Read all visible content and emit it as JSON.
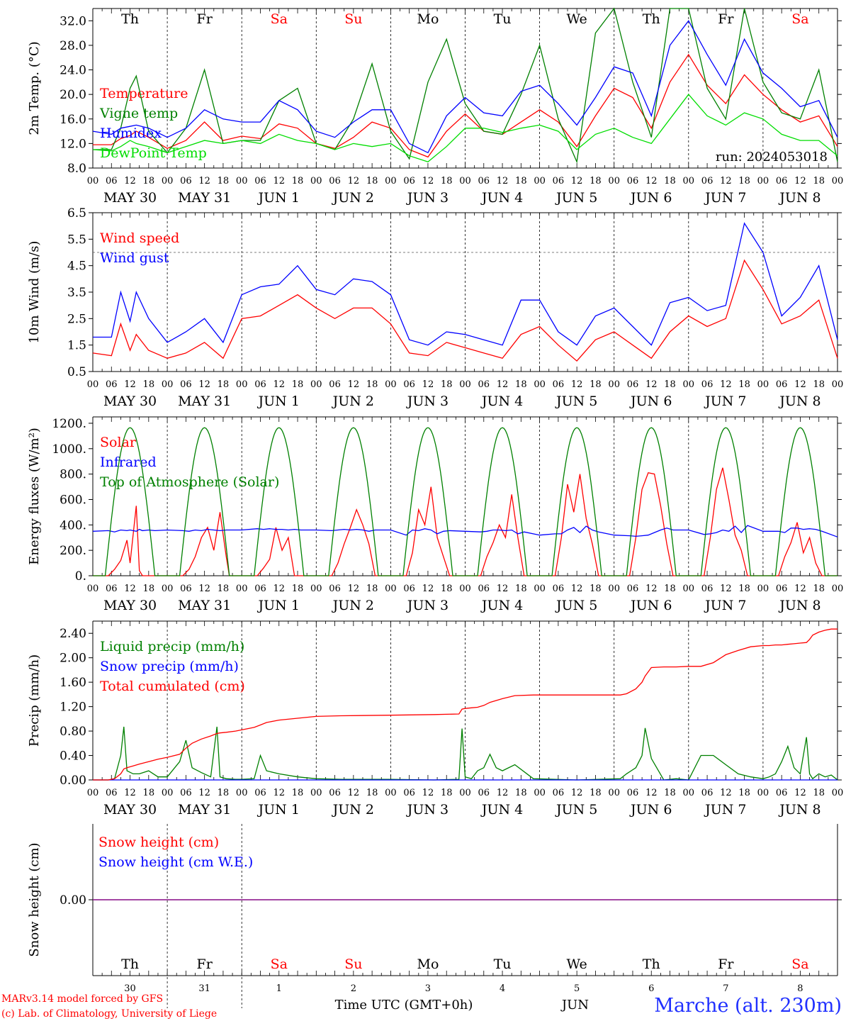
{
  "page": {
    "run_label": "run: 2024053018",
    "xlabel": "Time UTC (GMT+0h)",
    "month_label": "JUN",
    "location": "Marche (alt. 230m)",
    "credits": [
      "MARv3.14 model forced by GFS",
      "(c) Lab. of Climatology, University of Liege"
    ]
  },
  "time_axis": {
    "hour_ticks": [
      "00",
      "06",
      "12",
      "18"
    ],
    "days": [
      {
        "abbr": "Th",
        "date": "MAY 30",
        "num": "30",
        "weekend": false
      },
      {
        "abbr": "Fr",
        "date": "MAY 31",
        "num": "31",
        "weekend": false
      },
      {
        "abbr": "Sa",
        "date": "JUN  1",
        "num": "1",
        "weekend": true
      },
      {
        "abbr": "Su",
        "date": "JUN  2",
        "num": "2",
        "weekend": true
      },
      {
        "abbr": "Mo",
        "date": "JUN  3",
        "num": "3",
        "weekend": false
      },
      {
        "abbr": "Tu",
        "date": "JUN  4",
        "num": "4",
        "weekend": false
      },
      {
        "abbr": "We",
        "date": "JUN  5",
        "num": "5",
        "weekend": false
      },
      {
        "abbr": "Th",
        "date": "JUN  6",
        "num": "6",
        "weekend": false
      },
      {
        "abbr": "Fr",
        "date": "JUN  7",
        "num": "7",
        "weekend": false
      },
      {
        "abbr": "Sa",
        "date": "JUN  8",
        "num": "8",
        "weekend": true
      }
    ],
    "start_hour": 0,
    "end_hour": 240
  },
  "colors": {
    "red": "#ff0000",
    "green": "#008000",
    "blue": "#0000ff",
    "lime": "#00dd00",
    "purple": "#800080",
    "weekend": "#ff0000",
    "grid": "#888888"
  },
  "chart_data": [
    {
      "type": "line",
      "ylabel": "2m Temp. (°C)",
      "ylim": [
        8,
        34
      ],
      "yticks": [
        "8.0",
        "12.0",
        "16.0",
        "20.0",
        "24.0",
        "28.0",
        "32.0"
      ],
      "ytick_values": [
        8,
        12,
        16,
        20,
        24,
        28,
        32
      ],
      "show_weekdays_top": true,
      "x_hours": [
        0,
        6,
        9,
        12,
        14,
        18,
        24,
        30,
        36,
        42,
        48,
        54,
        60,
        66,
        72,
        78,
        84,
        90,
        96,
        102,
        108,
        114,
        120,
        126,
        132,
        138,
        144,
        150,
        156,
        162,
        168,
        174,
        180,
        186,
        192,
        198,
        204,
        210,
        216,
        222,
        228,
        234,
        240
      ],
      "series": [
        {
          "name": "Temperature",
          "color": "red",
          "values": [
            11.8,
            11.8,
            12.8,
            13.3,
            14.0,
            13.0,
            11.2,
            12.5,
            15.5,
            12.5,
            13.2,
            12.8,
            15.2,
            14.5,
            12.0,
            11.2,
            13.0,
            15.5,
            14.5,
            11.0,
            9.8,
            14.0,
            16.8,
            14.0,
            13.5,
            15.5,
            17.5,
            15.5,
            11.5,
            16.5,
            21.0,
            19.5,
            14.5,
            22.0,
            26.5,
            21.5,
            18.5,
            23.2,
            20.0,
            17.5,
            15.5,
            16.5,
            11.5
          ]
        },
        {
          "name": "Vigne temp",
          "color": "green",
          "values": [
            11.0,
            11.0,
            14.5,
            21.0,
            23.0,
            14.0,
            10.5,
            14.5,
            24.0,
            12.0,
            12.5,
            12.5,
            19.0,
            21.0,
            12.0,
            11.0,
            16.0,
            25.0,
            14.0,
            9.5,
            22.0,
            29.0,
            18.5,
            14.0,
            13.5,
            20.0,
            28.0,
            16.0,
            9.0,
            30.0,
            34.0,
            22.0,
            13.0,
            34.0,
            36.0,
            21.0,
            16.0,
            38.0,
            22.0,
            17.0,
            16.0,
            24.0,
            9.0
          ]
        },
        {
          "name": "Humidex",
          "color": "blue",
          "values": [
            14.0,
            13.5,
            14.5,
            14.8,
            15.0,
            14.5,
            13.0,
            14.5,
            17.5,
            16.0,
            15.5,
            15.5,
            19.0,
            17.5,
            14.0,
            13.0,
            15.5,
            17.5,
            17.5,
            12.0,
            10.5,
            16.5,
            19.5,
            17.0,
            16.5,
            20.5,
            21.5,
            18.5,
            15.0,
            19.5,
            24.5,
            23.5,
            16.5,
            28.0,
            32.0,
            26.5,
            21.5,
            29.0,
            23.5,
            21.0,
            18.0,
            19.0,
            13.0
          ]
        },
        {
          "name": "DewPoint Temp",
          "color": "lime",
          "values": [
            11.0,
            10.8,
            11.5,
            12.5,
            12.0,
            11.5,
            10.5,
            11.5,
            12.5,
            12.0,
            12.5,
            12.0,
            13.5,
            12.5,
            12.0,
            11.0,
            12.0,
            11.5,
            12.0,
            10.0,
            9.0,
            11.5,
            14.5,
            14.5,
            13.8,
            14.5,
            15.0,
            14.0,
            11.0,
            13.5,
            14.5,
            13.0,
            12.0,
            16.0,
            20.0,
            16.5,
            15.0,
            17.0,
            16.0,
            13.5,
            12.5,
            12.5,
            10.0
          ]
        }
      ]
    },
    {
      "type": "line",
      "ylabel": "10m Wind (m/s)",
      "ylim": [
        0.5,
        6.5
      ],
      "yticks": [
        "0.5",
        "1.5",
        "2.5",
        "3.5",
        "4.5",
        "5.5",
        "6.5"
      ],
      "ytick_values": [
        0.5,
        1.5,
        2.5,
        3.5,
        4.5,
        5.5,
        6.5
      ],
      "ref_line": 5.0,
      "x_hours": [
        0,
        6,
        9,
        12,
        14,
        18,
        24,
        30,
        36,
        42,
        48,
        54,
        60,
        66,
        72,
        78,
        84,
        90,
        96,
        102,
        108,
        114,
        120,
        126,
        132,
        138,
        144,
        150,
        156,
        162,
        168,
        174,
        180,
        186,
        192,
        198,
        204,
        210,
        216,
        222,
        228,
        234,
        240
      ],
      "series": [
        {
          "name": "Wind speed",
          "color": "red",
          "values": [
            1.2,
            1.1,
            2.3,
            1.3,
            1.9,
            1.3,
            1.0,
            1.2,
            1.6,
            1.0,
            2.5,
            2.6,
            3.0,
            3.4,
            2.9,
            2.5,
            2.9,
            2.9,
            2.3,
            1.2,
            1.1,
            1.6,
            1.4,
            1.2,
            1.0,
            1.9,
            2.2,
            1.5,
            0.9,
            1.7,
            2.0,
            1.5,
            1.0,
            2.0,
            2.6,
            2.2,
            2.5,
            4.7,
            3.6,
            2.3,
            2.6,
            3.2,
            1.0
          ]
        },
        {
          "name": "Wind gust",
          "color": "blue",
          "values": [
            1.8,
            1.8,
            3.5,
            2.4,
            3.5,
            2.5,
            1.6,
            2.0,
            2.5,
            1.6,
            3.4,
            3.7,
            3.8,
            4.5,
            3.6,
            3.4,
            4.0,
            3.9,
            3.4,
            1.7,
            1.5,
            2.0,
            1.9,
            1.7,
            1.5,
            3.2,
            3.2,
            2.0,
            1.5,
            2.6,
            2.9,
            2.2,
            1.5,
            3.1,
            3.3,
            2.8,
            3.0,
            6.1,
            5.0,
            2.6,
            3.3,
            4.5,
            1.7
          ]
        }
      ]
    },
    {
      "type": "line",
      "ylabel": "Energy fluxes (W/m²)",
      "ylim": [
        0,
        1250
      ],
      "yticks": [
        "0.",
        "200.",
        "400.",
        "600.",
        "800.",
        "1000.",
        "1200."
      ],
      "ytick_values": [
        0,
        200,
        400,
        600,
        800,
        1000,
        1200
      ],
      "x_hours": [
        0,
        5,
        7,
        9,
        11,
        12,
        14,
        15,
        16,
        18,
        20,
        24,
        29,
        31,
        33,
        35,
        37,
        39,
        41,
        43,
        44,
        48,
        53,
        55,
        57,
        59,
        61,
        63,
        65,
        67,
        72,
        77,
        79,
        81,
        83,
        85,
        87,
        89,
        91,
        96,
        101,
        103,
        105,
        107,
        109,
        111,
        113,
        115,
        120,
        125,
        127,
        129,
        131,
        133,
        135,
        137,
        139,
        144,
        149,
        151,
        153,
        155,
        157,
        159,
        161,
        163,
        168,
        173,
        175,
        177,
        179,
        181,
        183,
        185,
        187,
        192,
        197,
        199,
        201,
        203,
        205,
        207,
        209,
        211,
        216,
        221,
        223,
        225,
        227,
        229,
        231,
        233,
        235,
        240
      ],
      "series": [
        {
          "name": "Solar",
          "color": "red",
          "values": [
            0,
            0,
            50,
            120,
            280,
            100,
            550,
            40,
            0,
            0,
            0,
            0,
            0,
            50,
            150,
            300,
            380,
            200,
            500,
            150,
            0,
            0,
            0,
            60,
            130,
            380,
            200,
            300,
            0,
            0,
            0,
            0,
            100,
            250,
            380,
            520,
            400,
            250,
            0,
            0,
            0,
            180,
            520,
            400,
            700,
            300,
            150,
            0,
            0,
            0,
            150,
            260,
            400,
            300,
            640,
            300,
            0,
            0,
            0,
            300,
            720,
            500,
            800,
            450,
            250,
            0,
            0,
            0,
            300,
            680,
            810,
            800,
            550,
            250,
            0,
            0,
            0,
            300,
            680,
            850,
            600,
            320,
            200,
            0,
            0,
            0,
            150,
            260,
            420,
            180,
            300,
            100,
            0,
            0
          ]
        },
        {
          "name": "Infrared",
          "color": "blue",
          "values": [
            350,
            355,
            345,
            360,
            355,
            360,
            350,
            365,
            355,
            360,
            355,
            360,
            355,
            350,
            360,
            355,
            365,
            360,
            355,
            360,
            360,
            360,
            370,
            365,
            370,
            365,
            365,
            360,
            365,
            360,
            360,
            355,
            360,
            365,
            360,
            365,
            360,
            350,
            360,
            360,
            320,
            360,
            355,
            370,
            360,
            330,
            350,
            355,
            350,
            345,
            350,
            360,
            360,
            355,
            360,
            330,
            345,
            320,
            330,
            330,
            360,
            380,
            340,
            390,
            360,
            345,
            320,
            315,
            310,
            315,
            320,
            340,
            360,
            375,
            360,
            360,
            325,
            330,
            340,
            360,
            350,
            390,
            340,
            395,
            350,
            350,
            340,
            375,
            375,
            365,
            370,
            365,
            350,
            305
          ]
        },
        {
          "name": "Top of Atmosphere (Solar)",
          "color": "green",
          "smooth_day_arc": true,
          "peak": 1165,
          "rise": 4,
          "set": 20
        }
      ]
    },
    {
      "type": "line",
      "ylabel": "Precip (mm/h)",
      "ylim": [
        0,
        2.6
      ],
      "yticks": [
        "0.00",
        "0.40",
        "0.80",
        "1.20",
        "1.60",
        "2.00",
        "2.40"
      ],
      "ytick_values": [
        0,
        0.4,
        0.8,
        1.2,
        1.6,
        2.0,
        2.4
      ],
      "x_hours": [
        0,
        5,
        7,
        9,
        10,
        11,
        13,
        15,
        18,
        21,
        24,
        28,
        30,
        32,
        35,
        38,
        40,
        41,
        43,
        46,
        48,
        52,
        54,
        56,
        60,
        66,
        72,
        80,
        96,
        110,
        118,
        119,
        120,
        122,
        124,
        126,
        128,
        130,
        132,
        136,
        142,
        156,
        170,
        172,
        175,
        177,
        178,
        180,
        184,
        188,
        192,
        196,
        200,
        204,
        208,
        212,
        216,
        218,
        220,
        222,
        224,
        226,
        228,
        230,
        231,
        232,
        234,
        236,
        238,
        240
      ],
      "series": [
        {
          "name": "Liquid precip (mm/h)",
          "color": "green",
          "values": [
            0,
            0,
            0.02,
            0.4,
            0.87,
            0.15,
            0.1,
            0.1,
            0.15,
            0.05,
            0.05,
            0.3,
            0.65,
            0.2,
            0.12,
            0.05,
            0.87,
            0.05,
            0.02,
            0.01,
            0.01,
            0.02,
            0.4,
            0.15,
            0.1,
            0.05,
            0.02,
            0.01,
            0.01,
            0.0,
            0.01,
            0.84,
            0.05,
            0.02,
            0.15,
            0.2,
            0.42,
            0.2,
            0.15,
            0.25,
            0.02,
            0.0,
            0.02,
            0.1,
            0.2,
            0.4,
            0.85,
            0.35,
            0.0,
            0.02,
            0.0,
            0.4,
            0.4,
            0.25,
            0.1,
            0.05,
            0.02,
            0.05,
            0.1,
            0.3,
            0.55,
            0.2,
            0.1,
            0.7,
            0.1,
            0.02,
            0.1,
            0.05,
            0.08,
            0.0
          ]
        },
        {
          "name": "Snow precip (mm/h)",
          "color": "blue",
          "constant": 0
        },
        {
          "name": "Total cumulated (cm)",
          "color": "red",
          "values": [
            0,
            0,
            0.02,
            0.1,
            0.18,
            0.2,
            0.23,
            0.26,
            0.3,
            0.34,
            0.37,
            0.42,
            0.52,
            0.6,
            0.67,
            0.72,
            0.76,
            0.77,
            0.78,
            0.8,
            0.82,
            0.86,
            0.9,
            0.94,
            0.98,
            1.01,
            1.04,
            1.05,
            1.06,
            1.07,
            1.08,
            1.16,
            1.17,
            1.18,
            1.19,
            1.22,
            1.27,
            1.3,
            1.33,
            1.38,
            1.39,
            1.39,
            1.39,
            1.41,
            1.49,
            1.6,
            1.7,
            1.84,
            1.85,
            1.85,
            1.86,
            1.86,
            1.92,
            2.05,
            2.12,
            2.18,
            2.2,
            2.2,
            2.21,
            2.21,
            2.22,
            2.23,
            2.24,
            2.25,
            2.3,
            2.37,
            2.42,
            2.45,
            2.47,
            2.47
          ]
        }
      ]
    },
    {
      "type": "line",
      "ylabel": "Snow height (cm)",
      "ylim": [
        -1,
        1
      ],
      "yticks": [
        "0.00"
      ],
      "ytick_values": [
        0
      ],
      "show_weekdays_bottom": true,
      "series": [
        {
          "name": "Snow height (cm)",
          "color": "red",
          "constant": 0
        },
        {
          "name": "Snow height (cm W.E.)",
          "color": "blue",
          "constant": 0
        }
      ]
    }
  ]
}
